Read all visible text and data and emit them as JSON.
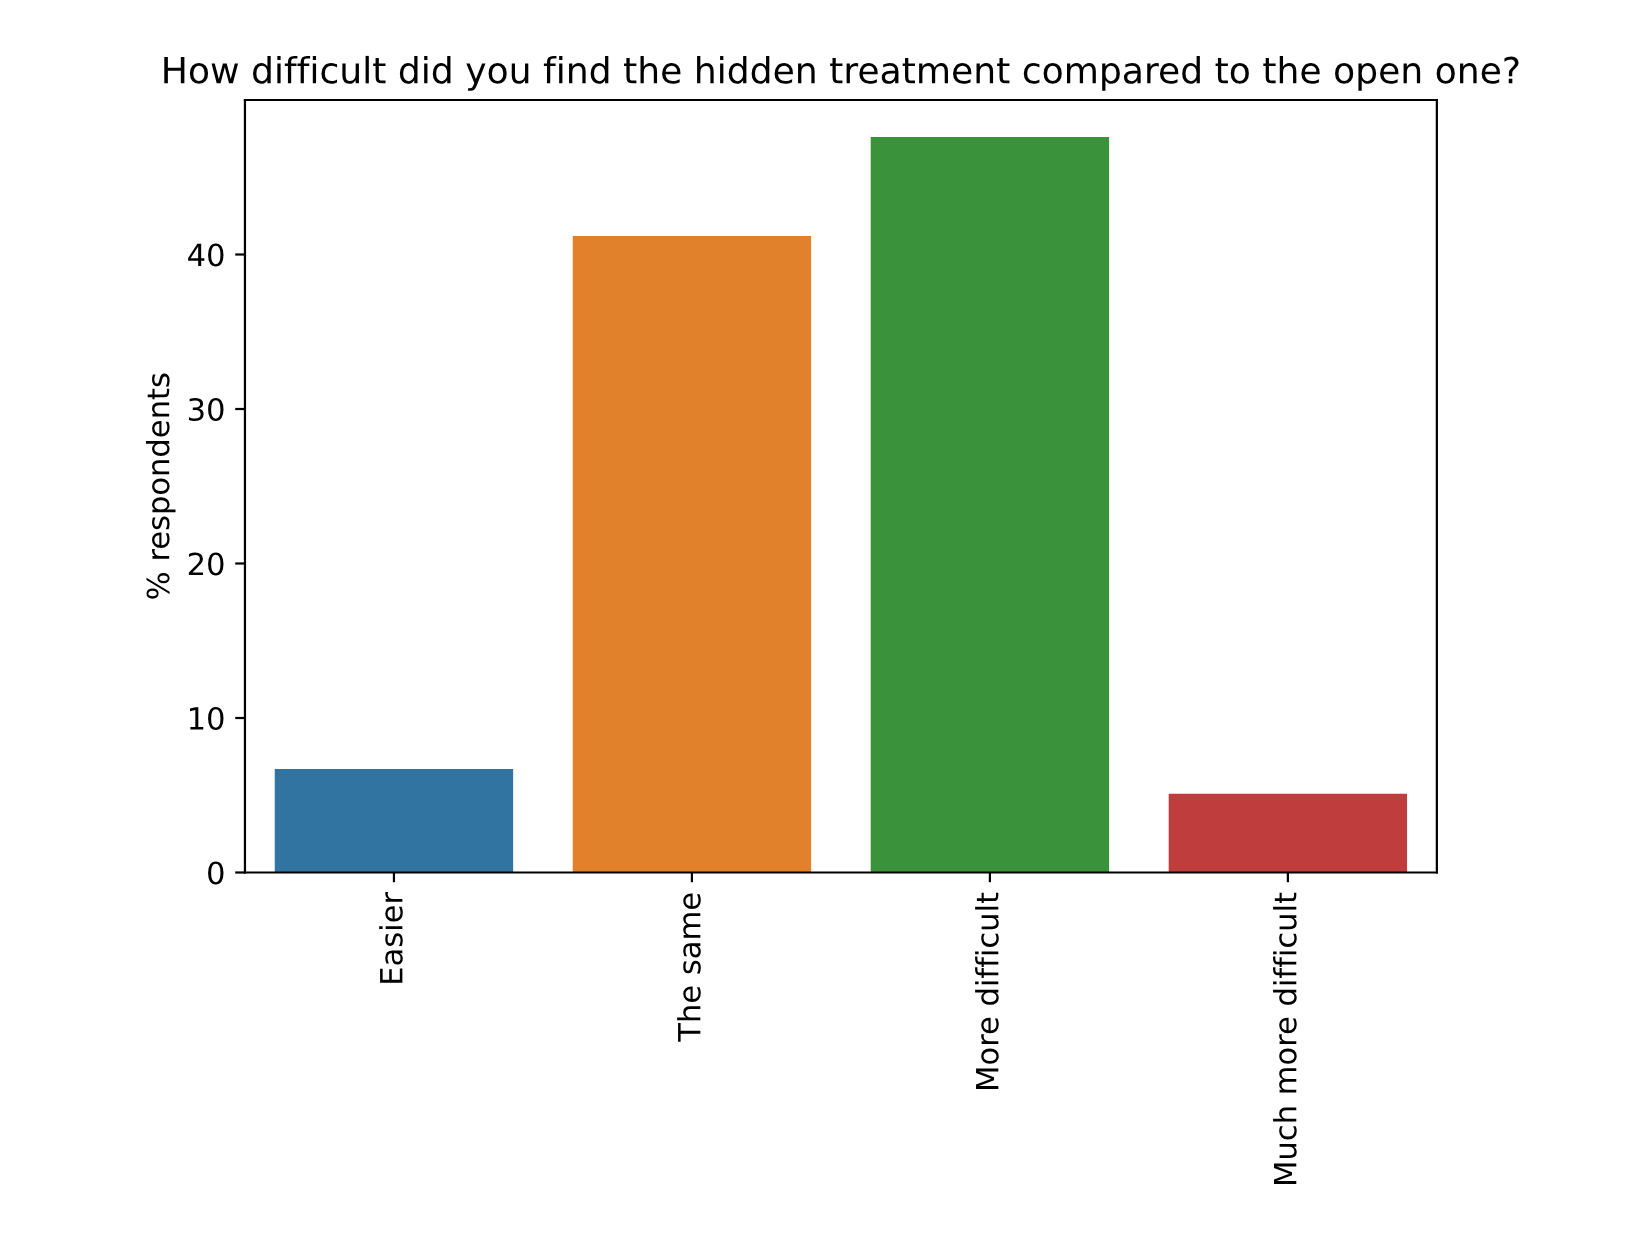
{
  "chart_data": {
    "type": "bar",
    "title": "How difficult did you find the hidden treatment compared to the open one?",
    "ylabel": "% respondents",
    "categories": [
      "Easier",
      "The same",
      "More difficult",
      "Much more difficult"
    ],
    "values": [
      6.7,
      41.2,
      47.6,
      5.1
    ],
    "colors": [
      "#3274a1",
      "#e1812c",
      "#3a923a",
      "#c03d3e"
    ],
    "ylim": [
      0,
      50
    ],
    "yticks": [
      0,
      10,
      20,
      30,
      40
    ],
    "grid": false
  }
}
